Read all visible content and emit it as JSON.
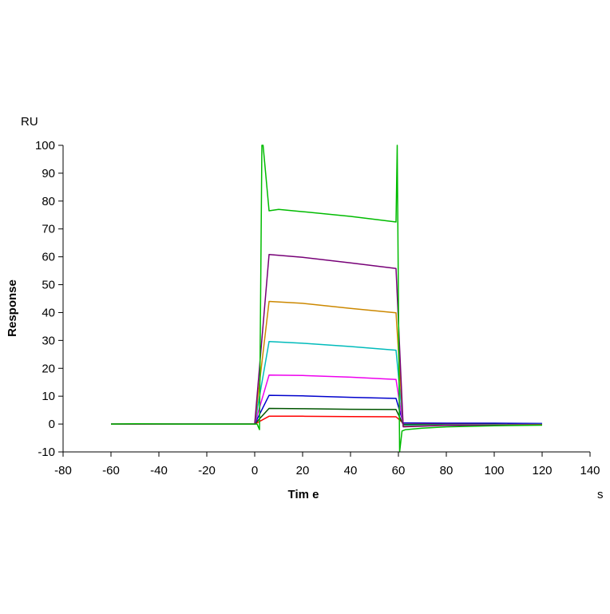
{
  "chart_data": {
    "type": "line",
    "title": "",
    "xlabel": "Tim e",
    "ylabel": "Response",
    "x_unit": "s",
    "y_unit": "RU",
    "xlim": [
      -80,
      140
    ],
    "ylim": [
      -10,
      100
    ],
    "x_ticks": [
      -80,
      -60,
      -40,
      -20,
      0,
      20,
      40,
      60,
      80,
      100,
      120,
      140
    ],
    "y_ticks": [
      -10,
      0,
      10,
      20,
      30,
      40,
      50,
      60,
      70,
      80,
      90,
      100
    ],
    "grid": false,
    "legend": "none",
    "series": [
      {
        "color": "#ff0000",
        "x": [
          -60,
          -40,
          -20,
          0,
          6,
          20,
          40,
          59,
          62,
          80,
          100,
          120
        ],
        "y": [
          0,
          0,
          0,
          0,
          2.8,
          2.8,
          2.7,
          2.6,
          0.3,
          0.2,
          0.2,
          0.1
        ]
      },
      {
        "color": "#005500",
        "x": [
          -60,
          -40,
          -20,
          0,
          6,
          20,
          40,
          59,
          62,
          80,
          100,
          120
        ],
        "y": [
          0,
          0,
          0,
          0,
          5.6,
          5.5,
          5.3,
          5.2,
          -0.2,
          -0.2,
          -0.1,
          -0.1
        ]
      },
      {
        "color": "#0000cc",
        "x": [
          -60,
          -40,
          -20,
          0,
          6,
          20,
          40,
          59,
          62,
          80,
          100,
          120
        ],
        "y": [
          0,
          0,
          0,
          0,
          10.3,
          10.1,
          9.6,
          9.2,
          0.4,
          0.3,
          0.3,
          0.2
        ]
      },
      {
        "color": "#ee00ee",
        "x": [
          -60,
          -40,
          -20,
          0,
          6,
          20,
          40,
          59,
          62,
          80,
          100,
          120
        ],
        "y": [
          0,
          0,
          0,
          0,
          17.6,
          17.4,
          16.8,
          16.0,
          -0.6,
          -0.3,
          -0.2,
          -0.1
        ]
      },
      {
        "color": "#00bbbb",
        "x": [
          -60,
          -40,
          -20,
          0,
          6,
          20,
          40,
          59,
          62,
          80,
          100,
          120
        ],
        "y": [
          0,
          0,
          0,
          0,
          29.6,
          29.0,
          27.8,
          26.5,
          -0.5,
          -0.3,
          -0.2,
          -0.1
        ]
      },
      {
        "color": "#cc8800",
        "x": [
          -60,
          -40,
          -20,
          0,
          6,
          20,
          40,
          59,
          62,
          80,
          100,
          120
        ],
        "y": [
          0,
          0,
          0,
          0,
          44.0,
          43.3,
          41.5,
          39.9,
          -0.8,
          -0.4,
          -0.3,
          -0.2
        ]
      },
      {
        "color": "#770077",
        "x": [
          -60,
          -40,
          -20,
          0,
          6,
          20,
          40,
          59,
          62,
          80,
          100,
          120
        ],
        "y": [
          0,
          0,
          0,
          0,
          60.8,
          59.8,
          57.8,
          55.8,
          -1.0,
          -0.5,
          -0.4,
          -0.3
        ]
      },
      {
        "color": "#00bb00",
        "x": [
          -60,
          -50,
          -30,
          -10,
          1,
          2,
          3,
          3.5,
          6,
          10,
          20,
          40,
          59,
          59.5,
          60.5,
          61.5,
          63,
          70,
          80,
          100,
          120
        ],
        "y": [
          0,
          0.1,
          0,
          0,
          0,
          -2,
          100,
          100,
          76.5,
          77,
          76.2,
          74.5,
          72.5,
          100,
          -10,
          -2.5,
          -2.0,
          -1.5,
          -1.0,
          -0.6,
          -0.4
        ]
      }
    ]
  }
}
